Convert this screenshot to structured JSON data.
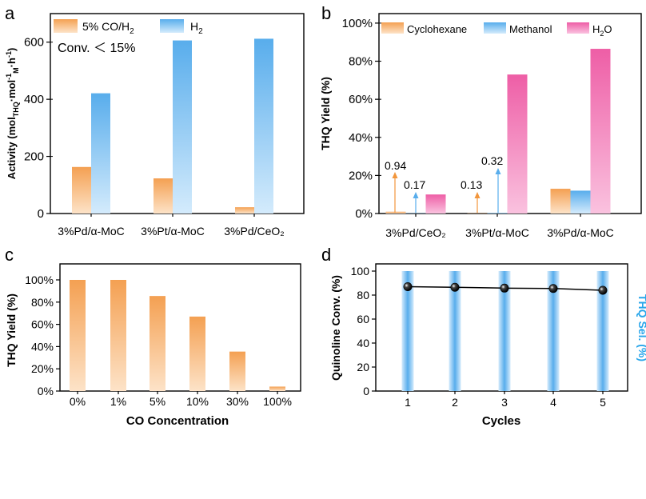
{
  "colors": {
    "orange_top": "#f4a052",
    "orange_bottom": "#fde3c8",
    "blue_top": "#58adec",
    "blue_bottom": "#d4ebfc",
    "pink_top": "#ee5ea6",
    "pink_bottom": "#fac2df",
    "bar_d": "#5fb2ee",
    "line_d": "#000000",
    "sel_label": "#29a6ea"
  },
  "chart_data": [
    {
      "panel": "a",
      "type": "bar",
      "ylabel_parts": {
        "pre": "Activity (mol",
        "sub1": "THQ",
        "mid1": "·mol",
        "sup1": "-1",
        "sub2": "M",
        "mid2": "·h",
        "sup2": "-1",
        "post": ")"
      },
      "ylim": [
        0,
        700
      ],
      "yticks": [
        "0",
        "200",
        "400",
        "600"
      ],
      "ytick_values": [
        0,
        200,
        400,
        600
      ],
      "categories": [
        "3%Pd/α-MoC",
        "3%Pt/α-MoC",
        "3%Pd/CeO₂"
      ],
      "series": [
        {
          "name": "5% CO/H₂",
          "legend_main": "5% CO/H",
          "legend_sub": "2",
          "values": [
            163,
            123,
            22
          ]
        },
        {
          "name": "H₂",
          "legend_main": "H",
          "legend_sub": "2",
          "values": [
            421,
            606,
            612
          ]
        }
      ],
      "annotation": "Conv. ＜ 15%"
    },
    {
      "panel": "b",
      "type": "bar",
      "ylabel": "THQ  Yield (%)",
      "ylim": [
        0,
        105
      ],
      "yticks": [
        "0%",
        "20%",
        "40%",
        "60%",
        "80%",
        "100%"
      ],
      "ytick_values": [
        0,
        20,
        40,
        60,
        80,
        100
      ],
      "categories": [
        "3%Pd/CeO₂",
        "3%Pt/α-MoC",
        "3%Pd/α-MoC"
      ],
      "series": [
        {
          "name": "Cyclohexane",
          "values": [
            0.94,
            0.13,
            13
          ]
        },
        {
          "name": "Methanol",
          "values": [
            0.17,
            0.32,
            12
          ]
        },
        {
          "name": "H₂O",
          "legend_main": "H",
          "legend_sub": "2",
          "legend_post": "O",
          "values": [
            10,
            73,
            86.5
          ]
        }
      ],
      "annotations": [
        "0.94",
        "0.17",
        "0.13",
        "0.32"
      ]
    },
    {
      "panel": "c",
      "type": "bar",
      "ylabel": "THQ Yield (%)",
      "xlabel": "CO Concentration",
      "ylim": [
        0,
        105
      ],
      "yticks": [
        "0%",
        "20%",
        "40%",
        "60%",
        "80%",
        "100%"
      ],
      "ytick_values": [
        0,
        20,
        40,
        60,
        80,
        100
      ],
      "categories": [
        "0%",
        "1%",
        "5%",
        "10%",
        "30%",
        "100%"
      ],
      "values": [
        100,
        100,
        85.5,
        67,
        35.5,
        4
      ]
    },
    {
      "panel": "d",
      "type": "bar+line",
      "ylabel": "Quinoline Conv. (%)",
      "ylabel_right": "THQ Sel. (%)",
      "xlabel": "Cycles",
      "ylim": [
        0,
        100
      ],
      "yticks": [
        "0",
        "20",
        "40",
        "60",
        "80",
        "100"
      ],
      "ytick_values": [
        0,
        20,
        40,
        60,
        80,
        100
      ],
      "categories": [
        "1",
        "2",
        "3",
        "4",
        "5"
      ],
      "bars": [
        100,
        100,
        100,
        100,
        100
      ],
      "line": [
        87,
        86.5,
        85.8,
        85.5,
        84
      ]
    }
  ]
}
